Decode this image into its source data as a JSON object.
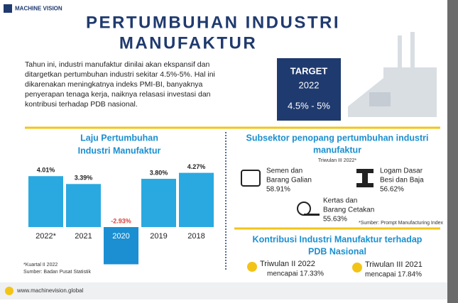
{
  "logo": "MACHINE VISION",
  "title": [
    "PERTUMBUHAN INDUSTRI",
    "MANUFAKTUR"
  ],
  "intro": [
    "Tahun ini, industri manufaktur dinilai akan  ekspansif dan",
    "ditargetkan pertumbuhan industri sekitar 4.5%-5%. Hal ini",
    "dikarenakan meningkatnya indeks PMI-BI, banyaknya",
    "penyerapan tenaga kerja, naiknya relasasi investasi dan",
    "kontribusi terhadap PDB nasional."
  ],
  "target": {
    "label": "TARGET",
    "year": "2022",
    "range": "4.5% - 5%"
  },
  "chart_data": {
    "type": "bar",
    "title": [
      "Laju Pertumbuhan",
      "Industri Manufaktur"
    ],
    "categories": [
      "2022*",
      "2021",
      "2020",
      "2019",
      "2018"
    ],
    "values": [
      4.01,
      3.39,
      -2.93,
      3.8,
      4.27
    ],
    "value_labels": [
      "4.01%",
      "3.39%",
      "-2.93%",
      "3.80%",
      "4.27%"
    ],
    "color": "#2aa9e0",
    "negative_color": "#1b8fd2",
    "negative_label_color": "#e0403a",
    "notes": [
      "*Kuartal II 2022",
      "Sumber: Badan Pusat Statistik"
    ]
  },
  "subsectors": {
    "title": [
      "Subsektor penopang pertumbuhan industri",
      "manufaktur"
    ],
    "period": "Triwulan III 2022*",
    "items": [
      [
        "Semen dan",
        "Barang Galian",
        "58.91%"
      ],
      [
        "Logam Dasar",
        "Besi dan Baja",
        "56.62%"
      ],
      [
        "Kertas dan",
        "Barang Cetakan",
        "55.63%"
      ]
    ],
    "source": "*Sumber: Prompt Manufacturing Index"
  },
  "contribution": {
    "title": [
      "Kontribusi Industri Manufaktur terhadap",
      "PDB Nasional"
    ],
    "items": [
      [
        "Triwulan II 2022",
        "mencapai 17.33%"
      ],
      [
        "Triwulan III 2021",
        "mencapai 17.84%"
      ]
    ]
  },
  "footer_url": "www.machinevision.global"
}
